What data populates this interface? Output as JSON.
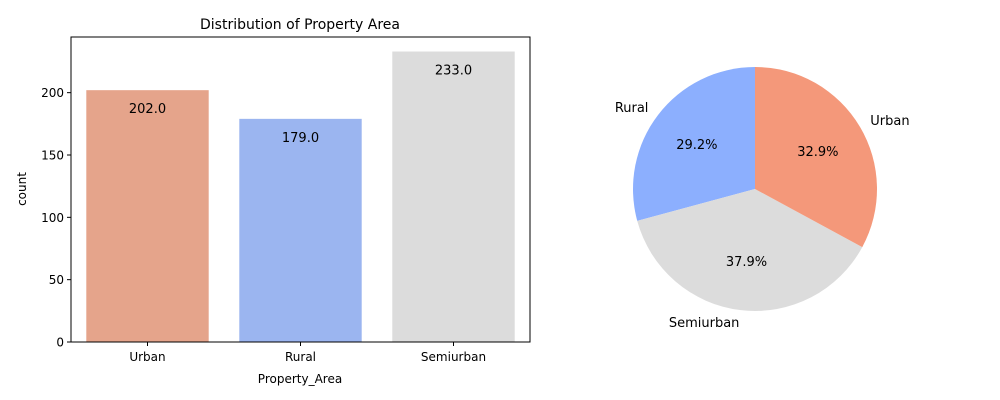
{
  "chart_data": [
    {
      "type": "bar",
      "title": "Distribution of Property Area",
      "xlabel": "Property_Area",
      "ylabel": "count",
      "categories": [
        "Urban",
        "Rural",
        "Semiurban"
      ],
      "values": [
        202,
        179,
        233
      ],
      "data_labels": [
        "202.0",
        "179.0",
        "233.0"
      ],
      "colors": [
        "#e5a48b",
        "#9bb5f0",
        "#dcdcdc"
      ],
      "ylim": [
        0,
        244.65
      ],
      "yticks": [
        0,
        50,
        100,
        150,
        200
      ],
      "grid": false
    },
    {
      "type": "pie",
      "categories": [
        "Rural",
        "Semiurban",
        "Urban"
      ],
      "values": [
        29.2,
        37.9,
        32.9
      ],
      "data_labels": [
        "29.2%",
        "37.9%",
        "32.9%"
      ],
      "colors": [
        "#8caffe",
        "#dcdcdc",
        "#f4987a"
      ],
      "start_angle_deg": 90,
      "direction": "counterclockwise"
    }
  ]
}
